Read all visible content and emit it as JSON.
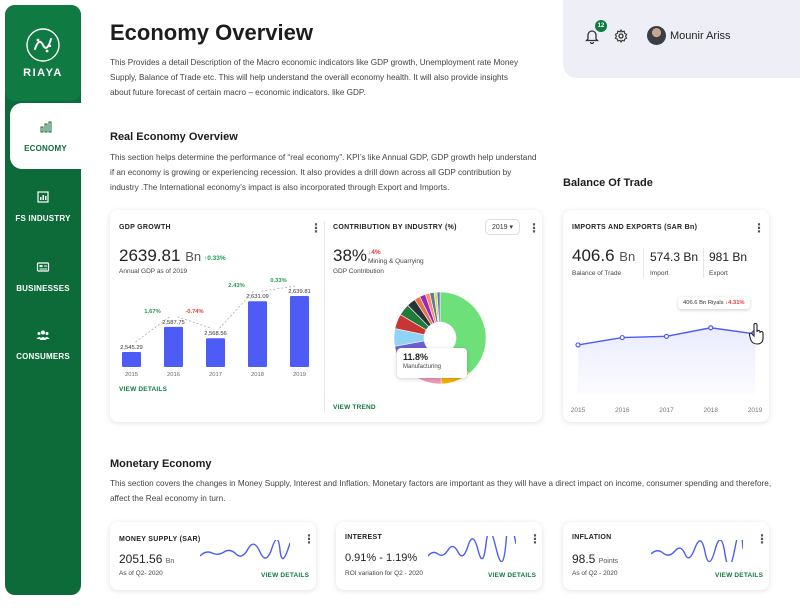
{
  "sidebar": {
    "brand": "RIAYA",
    "items": [
      {
        "label": "ECONOMY",
        "icon": "bar-chart-icon"
      },
      {
        "label": "FS INDUSTRY",
        "icon": "building-chart-icon"
      },
      {
        "label": "BUSINESSES",
        "icon": "briefcase-icon"
      },
      {
        "label": "CONSUMERS",
        "icon": "people-icon"
      }
    ]
  },
  "header": {
    "title": "Economy Overview",
    "description": "This Provides a detail Description of the Macro economic indicators  like GDP growth, Unemployment rate Money Supply, Balance of Trade etc. This will help understand the overall economy health. It will also provide insights about future forecast of certain macro – economic indicators. like GDP.",
    "notification_count": "12",
    "user_name": "Mounir Ariss"
  },
  "real_economy": {
    "title": "Real Economy Overview",
    "description": "This section helps determine the performance of “real economy”. KPI’s like  Annual GDP, GDP growth help understand if an economy is growing or experiencing recession. It also provides a drill down across all  GDP contribution by industry .The International economy’s impact is also incorporated through Export and Imports."
  },
  "balance_of_trade": {
    "title": "Balance Of Trade"
  },
  "gdp_card": {
    "title": "GDP GROWTH",
    "value": "2639.81",
    "unit": "Bn",
    "change": "↑0.33%",
    "caption": "Annual GDP as of 2019",
    "link": "VIEW DETAILS",
    "chart_data": {
      "type": "bar",
      "categories": [
        "2015",
        "2016",
        "2017",
        "2018",
        "2019"
      ],
      "values": [
        2545.29,
        2587.75,
        2568.56,
        2631.09,
        2639.81
      ],
      "value_labels": [
        "2,545.29",
        "2,587.75",
        "2,568.56",
        "2,631.09",
        "2,639.81"
      ],
      "growth_labels": [
        "1.67%",
        "-0.74%",
        "2.43%",
        "0.33%"
      ],
      "growth_colors": [
        "#1e9b4f",
        "#e23c3c",
        "#1e9b4f",
        "#1e9b4f"
      ],
      "ylim": [
        2520,
        2650
      ],
      "bar_color": "#4d5cf5"
    }
  },
  "industry_card": {
    "title": "CONTRIBUTION BY INDUSTRY (%)",
    "year": "2019 ▾",
    "value": "38%",
    "change": "↓4%",
    "sector": "Mining & Quarrying",
    "caption": "GDP Contribution",
    "tooltip_value": "11.8%",
    "tooltip_label": "Manufacturing",
    "link": "VIEW TREND",
    "chart_data": {
      "type": "pie",
      "values": [
        38,
        10,
        11.8,
        10,
        6,
        5,
        4,
        3,
        2,
        2,
        1.5,
        1.5,
        1,
        1
      ],
      "colors": [
        "#6ee07a",
        "#f5b400",
        "#f19cb9",
        "#6b5fd6",
        "#8fd3f5",
        "#c93535",
        "#1e7b3c",
        "#263238",
        "#e8734a",
        "#9c27b0",
        "#ff8a65",
        "#607d8b",
        "#d4e157",
        "#5c6bc0"
      ]
    }
  },
  "trade_card": {
    "title": "IMPORTS AND EXPORTS (SAR Bn)",
    "balance": "406.6",
    "balance_unit": "Bn",
    "balance_caption": "Balance of Trade",
    "import": "574.3 Bn",
    "import_caption": "Import",
    "export": "981 Bn",
    "export_caption": "Export",
    "tooltip_text": "406.6 Bn Riyals",
    "tooltip_change": "↓4.31%",
    "chart_data": {
      "type": "line",
      "categories": [
        "2015",
        "2016",
        "2017",
        "2018",
        "2019"
      ],
      "values": [
        380,
        392,
        394,
        408,
        398
      ],
      "ylim": [
        300,
        450
      ]
    }
  },
  "monetary": {
    "title": "Monetary Economy",
    "description": "This section covers the  changes in Money Supply, Interest and Inflation. Monetary factors are important as they will have a direct impact on  income, consumer spending and therefore, affect the Real economy  in turn."
  },
  "money_card": {
    "title": "MONEY SUPPLY (SAR)",
    "value": "2051.56",
    "unit": "Bn",
    "caption": "As of Q2- 2020",
    "link": "VIEW DETAILS"
  },
  "interest_card": {
    "title": "INTEREST",
    "value": "0.91% - 1.19%",
    "caption": "ROI variation for Q2 - 2020",
    "link": "VIEW DETAILS"
  },
  "inflation_card": {
    "title": "INFLATION",
    "value": "98.5",
    "unit": "Points",
    "caption": "As of Q2 - 2020",
    "link": "VIEW DETAILS"
  },
  "colors": {
    "brand_green": "#0d6b3a",
    "accent_blue": "#4d5cf5",
    "positive": "#1e9b4f",
    "negative": "#e23c3c"
  }
}
